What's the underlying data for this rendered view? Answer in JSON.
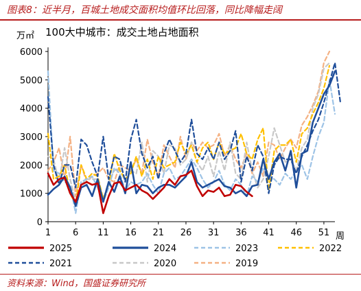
{
  "header": {
    "title": "图表8：近半月，百城土地成交面积均值环比回落，同比降幅走阔"
  },
  "footer": {
    "source": "资料来源：Wind，国盛证券研究所"
  },
  "colors": {
    "2025": "#c00000",
    "2024": "#1f4e9a",
    "2023": "#9dc3e6",
    "2022": "#ffc000",
    "2021": "#1f4e9a",
    "2020": "#c8c8c8",
    "2019": "#f4b183"
  },
  "chart_data": {
    "type": "line",
    "title": "100大中城市：成交土地占地面积",
    "ylabel": "万㎡",
    "xlabel": "周",
    "ylim": [
      0,
      6000
    ],
    "xlim": [
      1,
      53
    ],
    "yticks": [
      0,
      1000,
      2000,
      3000,
      4000,
      5000,
      6000
    ],
    "xticks": [
      1,
      6,
      11,
      16,
      21,
      26,
      31,
      36,
      41,
      46,
      51
    ],
    "series": [
      {
        "name": "2025",
        "style": "solid",
        "values": [
          1700,
          1300,
          1500,
          1550,
          1000,
          700,
          1300,
          1400,
          1300,
          1350,
          300,
          900,
          1350,
          1400,
          1100,
          1200,
          1300,
          1100,
          1000,
          800,
          1000,
          1200,
          1500,
          1300,
          1600,
          1650,
          1800,
          1250,
          900,
          1100,
          1050,
          1200,
          900,
          950,
          1300,
          1250,
          1050,
          900
        ]
      },
      {
        "name": "2024",
        "style": "solid",
        "values": [
          950,
          1150,
          1300,
          1600,
          1200,
          550,
          1200,
          1300,
          900,
          1500,
          700,
          1400,
          1050,
          1600,
          1000,
          2100,
          1000,
          1300,
          1250,
          1000,
          1200,
          1300,
          1300,
          1200,
          1400,
          1600,
          2100,
          1400,
          1200,
          1300,
          1400,
          1500,
          1250,
          1200,
          1000,
          1100,
          900,
          1250,
          1300,
          2200,
          1500,
          2100,
          2400,
          1800,
          2500,
          1200,
          2400,
          2500,
          3500,
          4000,
          4500,
          4800,
          5300
        ]
      },
      {
        "name": "2023",
        "style": "dash",
        "values": [
          5300,
          1800,
          1700,
          1400,
          1300,
          300,
          1400,
          1500,
          1600,
          1200,
          700,
          1200,
          1900,
          1700,
          1100,
          1400,
          1300,
          1400,
          1700,
          1300,
          1000,
          1700,
          1900,
          1500,
          1600,
          1900,
          2200,
          1900,
          1500,
          1200,
          1400,
          1800,
          1300,
          1100,
          1500,
          1300,
          900,
          1600,
          1400,
          1900,
          1600,
          1500,
          1300,
          1700,
          1500,
          1800,
          2000,
          1500,
          2300,
          3000,
          3500,
          5000,
          3800
        ]
      },
      {
        "name": "2022",
        "style": "dash",
        "values": [
          3100,
          1500,
          1600,
          2000,
          1000,
          600,
          2000,
          1500,
          1700,
          1600,
          800,
          1300,
          2400,
          1800,
          1500,
          1700,
          2300,
          1600,
          2200,
          1500,
          2300,
          1900,
          2000,
          2100,
          2800,
          2400,
          2700,
          2100,
          2600,
          2800,
          2200,
          2800,
          2400,
          2500,
          2600,
          3100,
          2400,
          2200,
          2900,
          3300,
          1100,
          2500,
          2700,
          2700,
          2900,
          2100,
          3100,
          3300,
          3800,
          4200,
          4700,
          5500
        ]
      },
      {
        "name": "2021",
        "style": "dash",
        "values": [
          4400,
          2000,
          1300,
          2000,
          2000,
          1200,
          2900,
          2700,
          2100,
          1600,
          3000,
          1500,
          2300,
          2200,
          1400,
          2900,
          3600,
          2400,
          1900,
          2300,
          1500,
          2400,
          2900,
          2500,
          2100,
          2400,
          3600,
          2400,
          2200,
          2600,
          2200,
          2800,
          2200,
          2500,
          3200,
          1400,
          2300,
          1800,
          2700,
          2300,
          1000,
          2000,
          2300,
          2200,
          2200,
          1700,
          2300,
          2700,
          3200,
          3600,
          4200,
          4900,
          5600,
          4200
        ]
      },
      {
        "name": "2020",
        "style": "dash",
        "values": [
          2300,
          2200,
          1400,
          2600,
          1500,
          700,
          1300,
          1500,
          1500,
          1500,
          800,
          1400,
          1800,
          1900,
          1400,
          1800,
          1700,
          2800,
          1400,
          2500,
          2300,
          1700,
          2700,
          2600,
          2000,
          2200,
          2800,
          2100,
          1800,
          2300,
          1600,
          2500,
          1800,
          2800,
          1700,
          1500,
          2800,
          1800,
          1200,
          1500,
          2300,
          3300,
          2700,
          2100,
          2200,
          1800,
          2600,
          2900,
          4000,
          4500,
          5400,
          5600
        ]
      },
      {
        "name": "2019",
        "style": "dash",
        "values": [
          1800,
          2100,
          2600,
          1500,
          3000,
          900,
          2000,
          1400,
          1600,
          1700,
          1900,
          1500,
          1400,
          2000,
          1900,
          1800,
          2200,
          1700,
          2900,
          2100,
          1600,
          2700,
          2300,
          1900,
          3000,
          2200,
          2800,
          2500,
          2800,
          2600,
          2700,
          3100,
          2300,
          2700,
          2200,
          1900,
          2400,
          1700,
          2100,
          1600,
          2800,
          2700,
          2200,
          2600,
          2900,
          2600,
          3400,
          3700,
          4100,
          4600,
          5600,
          6000
        ]
      }
    ]
  }
}
